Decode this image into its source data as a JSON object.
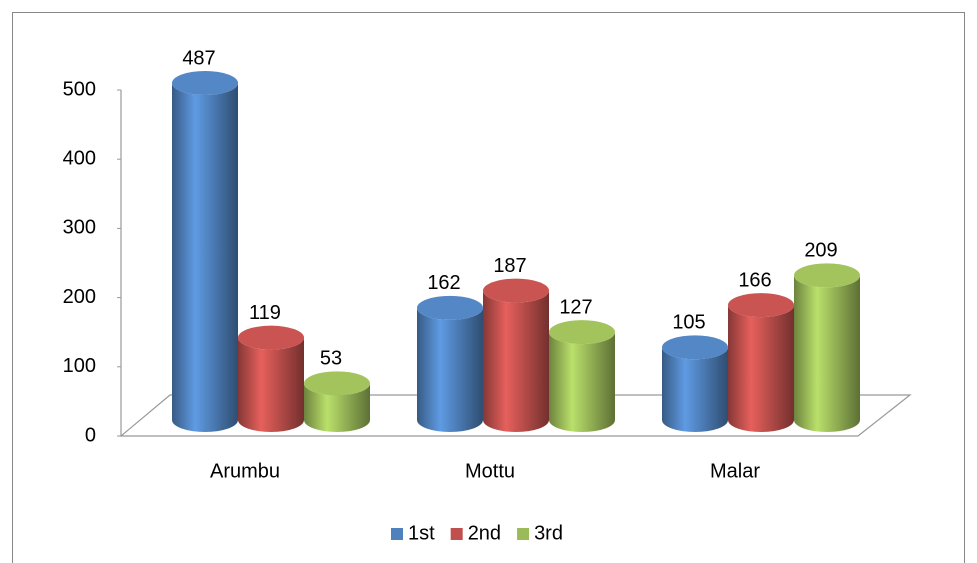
{
  "chart_data": {
    "type": "bar",
    "categories": [
      "Arumbu",
      "Mottu",
      "Malar"
    ],
    "series": [
      {
        "name": "1st",
        "color": "#4f81bd",
        "values": [
          487,
          162,
          105
        ]
      },
      {
        "name": "2nd",
        "color": "#c0504d",
        "values": [
          119,
          187,
          166
        ]
      },
      {
        "name": "3rd",
        "color": "#9bbb59",
        "values": [
          53,
          127,
          209
        ]
      }
    ],
    "ylim": [
      0,
      500
    ],
    "yticks": [
      0,
      100,
      200,
      300,
      400,
      500
    ],
    "legend": "bottom"
  }
}
